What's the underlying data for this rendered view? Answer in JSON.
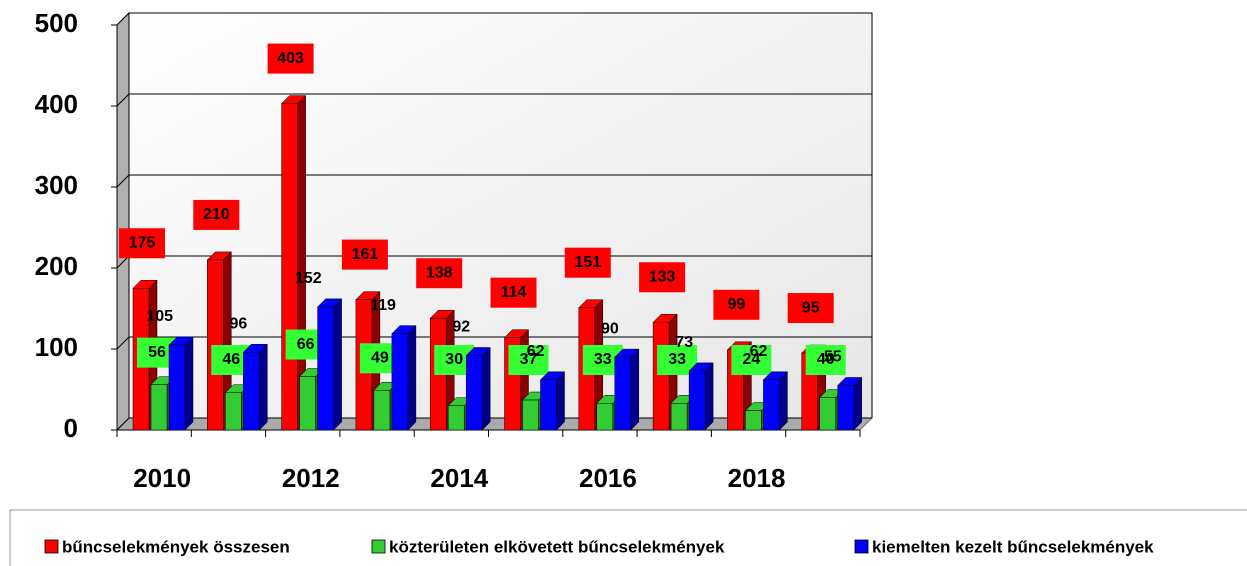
{
  "chart_data": {
    "type": "bar3d",
    "categories": [
      "2010",
      null,
      "2012",
      null,
      "2014",
      null,
      "2016",
      null,
      "2018",
      null
    ],
    "series": [
      {
        "name": "bűncselekmények összesen",
        "color": "#ff0000",
        "values": [
          175,
          210,
          403,
          161,
          138,
          114,
          151,
          133,
          99,
          95
        ]
      },
      {
        "name": "közterületen elkövetett bűncselekmények",
        "color": "#33cc33",
        "values": [
          56,
          46,
          66,
          49,
          30,
          37,
          33,
          33,
          24,
          40
        ]
      },
      {
        "name": "kiemelten kezelt bűncselekmények",
        "color": "#0000ff",
        "values": [
          105,
          96,
          152,
          119,
          92,
          62,
          90,
          73,
          62,
          55
        ]
      }
    ],
    "ylim": [
      0,
      500
    ],
    "yticks": [
      0,
      100,
      200,
      300,
      400,
      500
    ],
    "grid": true,
    "legend": "bottom"
  }
}
